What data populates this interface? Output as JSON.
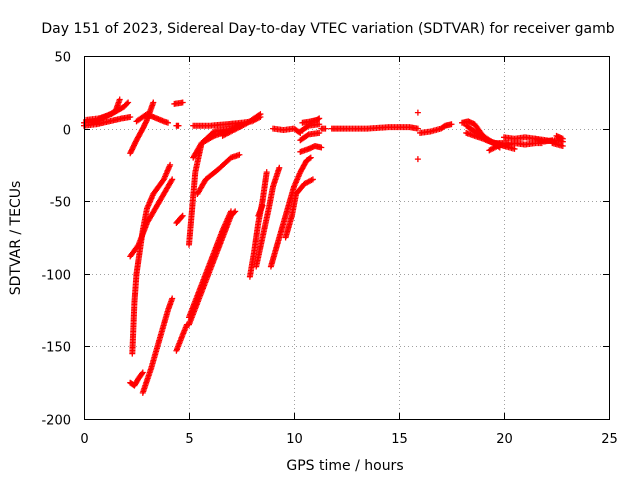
{
  "chart_data": {
    "type": "scatter",
    "title": "Day 151 of 2023, Sidereal Day-to-day VTEC variation (SDTVAR) for receiver gamb",
    "xlabel": "GPS time / hours",
    "ylabel": "SDTVAR / TECUs",
    "xlim": [
      0,
      25
    ],
    "ylim": [
      -200,
      50
    ],
    "xticks": [
      0,
      5,
      10,
      15,
      20,
      25
    ],
    "yticks": [
      50,
      0,
      -50,
      -100,
      -150,
      -200
    ],
    "grid": true,
    "marker": "+",
    "color": "#ff0000",
    "series": [
      {
        "name": "SDTVAR",
        "segments": [
          [
            [
              0.0,
              4
            ],
            [
              0.5,
              5
            ],
            [
              1.0,
              8
            ],
            [
              1.5,
              12
            ],
            [
              1.7,
              20
            ]
          ],
          [
            [
              0.0,
              2
            ],
            [
              0.6,
              3
            ],
            [
              1.2,
              5
            ],
            [
              1.8,
              7
            ],
            [
              2.2,
              8
            ]
          ],
          [
            [
              0.1,
              6
            ],
            [
              0.7,
              7
            ],
            [
              1.3,
              10
            ],
            [
              1.9,
              15
            ],
            [
              2.1,
              18
            ]
          ],
          [
            [
              2.2,
              -17
            ],
            [
              2.5,
              -8
            ],
            [
              2.8,
              0
            ],
            [
              3.0,
              6
            ],
            [
              3.3,
              18
            ]
          ],
          [
            [
              2.5,
              5
            ],
            [
              3.0,
              10
            ],
            [
              3.3,
              8
            ],
            [
              3.8,
              5
            ],
            [
              4.0,
              4
            ]
          ],
          [
            [
              4.4,
              2
            ],
            [
              4.5,
              2
            ]
          ],
          [
            [
              4.3,
              17
            ],
            [
              4.7,
              18
            ]
          ],
          [
            [
              2.3,
              -155
            ],
            [
              2.4,
              -120
            ],
            [
              2.5,
              -100
            ],
            [
              2.6,
              -90
            ],
            [
              2.8,
              -70
            ],
            [
              3.0,
              -55
            ],
            [
              3.3,
              -45
            ],
            [
              3.8,
              -35
            ],
            [
              4.1,
              -25
            ]
          ],
          [
            [
              2.2,
              -88
            ],
            [
              2.6,
              -80
            ],
            [
              3.0,
              -65
            ],
            [
              3.4,
              -55
            ],
            [
              3.8,
              -45
            ],
            [
              4.2,
              -35
            ]
          ],
          [
            [
              2.2,
              -175
            ],
            [
              2.4,
              -177
            ],
            [
              2.6,
              -172
            ],
            [
              2.8,
              -168
            ]
          ],
          [
            [
              2.8,
              -182
            ],
            [
              3.2,
              -165
            ],
            [
              3.6,
              -145
            ],
            [
              4.0,
              -125
            ],
            [
              4.2,
              -117
            ]
          ],
          [
            [
              4.4,
              -65
            ],
            [
              4.7,
              -60
            ]
          ],
          [
            [
              4.4,
              -153
            ],
            [
              4.7,
              -142
            ],
            [
              4.9,
              -135
            ]
          ],
          [
            [
              5.0,
              -135
            ],
            [
              5.4,
              -120
            ],
            [
              5.8,
              -105
            ],
            [
              6.2,
              -90
            ],
            [
              6.6,
              -75
            ],
            [
              7.0,
              -60
            ],
            [
              7.2,
              -57
            ]
          ],
          [
            [
              5.0,
              -130
            ],
            [
              5.4,
              -115
            ],
            [
              5.8,
              -100
            ],
            [
              6.2,
              -85
            ],
            [
              6.6,
              -70
            ],
            [
              7.0,
              -57
            ]
          ],
          [
            [
              5.0,
              -80
            ],
            [
              5.3,
              -30
            ],
            [
              5.6,
              -10
            ],
            [
              6.2,
              -2
            ],
            [
              7.0,
              0
            ],
            [
              7.5,
              2
            ]
          ],
          [
            [
              5.4,
              -45
            ],
            [
              5.8,
              -35
            ],
            [
              6.4,
              -28
            ],
            [
              7.0,
              -20
            ],
            [
              7.4,
              -18
            ]
          ],
          [
            [
              5.2,
              2
            ],
            [
              6.0,
              2
            ],
            [
              6.8,
              3
            ],
            [
              7.5,
              4
            ],
            [
              8.0,
              5
            ],
            [
              8.4,
              8
            ]
          ],
          [
            [
              5.2,
              -20
            ],
            [
              5.6,
              -10
            ],
            [
              6.2,
              -5
            ],
            [
              6.8,
              -2
            ],
            [
              7.4,
              2
            ]
          ],
          [
            [
              6.6,
              -5
            ],
            [
              7.0,
              -2
            ],
            [
              7.8,
              4
            ],
            [
              8.4,
              10
            ]
          ],
          [
            [
              7.9,
              -102
            ],
            [
              8.1,
              -85
            ],
            [
              8.3,
              -65
            ],
            [
              8.5,
              -50
            ],
            [
              8.7,
              -30
            ]
          ],
          [
            [
              8.2,
              -95
            ],
            [
              8.5,
              -75
            ],
            [
              8.8,
              -55
            ],
            [
              9.0,
              -40
            ],
            [
              9.3,
              -27
            ]
          ],
          [
            [
              8.3,
              -60
            ],
            [
              8.5,
              -53
            ]
          ],
          [
            [
              8.9,
              -95
            ],
            [
              9.2,
              -80
            ],
            [
              9.5,
              -65
            ],
            [
              9.8,
              -50
            ],
            [
              10.0,
              -40
            ],
            [
              10.3,
              -30
            ],
            [
              10.6,
              -22
            ],
            [
              10.8,
              -20
            ]
          ],
          [
            [
              9.6,
              -75
            ],
            [
              9.9,
              -60
            ],
            [
              10.1,
              -45
            ],
            [
              10.5,
              -38
            ],
            [
              10.9,
              -35
            ]
          ],
          [
            [
              9.0,
              0
            ],
            [
              9.5,
              -1
            ],
            [
              10.0,
              0
            ],
            [
              10.3,
              -3
            ]
          ],
          [
            [
              10.3,
              -2
            ],
            [
              10.7,
              2
            ],
            [
              11.2,
              3
            ]
          ],
          [
            [
              10.3,
              -8
            ],
            [
              10.7,
              -4
            ],
            [
              11.2,
              -3
            ]
          ],
          [
            [
              10.3,
              -16
            ],
            [
              10.7,
              -14
            ],
            [
              11.0,
              -12
            ],
            [
              11.3,
              -13
            ]
          ],
          [
            [
              10.4,
              4
            ],
            [
              10.8,
              5
            ],
            [
              11.1,
              6
            ],
            [
              11.2,
              7
            ]
          ],
          [
            [
              11.3,
              0
            ],
            [
              11.5,
              0
            ]
          ],
          [
            [
              11.8,
              0
            ],
            [
              12.5,
              0
            ],
            [
              13.5,
              0
            ],
            [
              14.5,
              1
            ],
            [
              15.5,
              1
            ],
            [
              15.9,
              0
            ]
          ],
          [
            [
              15.9,
              -21
            ]
          ],
          [
            [
              15.9,
              11
            ]
          ],
          [
            [
              16.0,
              -3
            ],
            [
              16.5,
              -2
            ],
            [
              17.0,
              0
            ],
            [
              17.2,
              2
            ],
            [
              17.5,
              3
            ]
          ],
          [
            [
              18.0,
              4
            ],
            [
              18.3,
              5
            ],
            [
              18.6,
              3
            ],
            [
              19.0,
              -5
            ],
            [
              19.5,
              -10
            ],
            [
              20.2,
              -10
            ]
          ],
          [
            [
              18.2,
              2
            ],
            [
              18.6,
              -2
            ],
            [
              19.2,
              -8
            ],
            [
              20.0,
              -12
            ],
            [
              20.5,
              -14
            ]
          ],
          [
            [
              18.2,
              -3
            ],
            [
              18.6,
              -5
            ],
            [
              19.0,
              -7
            ],
            [
              19.5,
              -10
            ],
            [
              19.8,
              -13
            ]
          ],
          [
            [
              19.3,
              -15
            ],
            [
              19.7,
              -12
            ]
          ],
          [
            [
              20.0,
              -6
            ],
            [
              20.5,
              -7
            ],
            [
              21.0,
              -6
            ],
            [
              21.5,
              -7
            ],
            [
              22.0,
              -8
            ],
            [
              22.4,
              -9
            ]
          ],
          [
            [
              20.0,
              -12
            ],
            [
              20.5,
              -10
            ],
            [
              21.0,
              -11
            ],
            [
              21.5,
              -10
            ],
            [
              21.8,
              -10
            ]
          ],
          [
            [
              21.5,
              -7
            ],
            [
              21.9,
              -9
            ],
            [
              22.3,
              -8
            ]
          ],
          [
            [
              22.4,
              -8
            ],
            [
              22.6,
              -8
            ],
            [
              22.8,
              -9
            ]
          ],
          [
            [
              22.3,
              -10
            ],
            [
              22.8,
              -12
            ]
          ],
          [
            [
              22.5,
              -5
            ],
            [
              22.8,
              -7
            ]
          ]
        ]
      }
    ]
  }
}
